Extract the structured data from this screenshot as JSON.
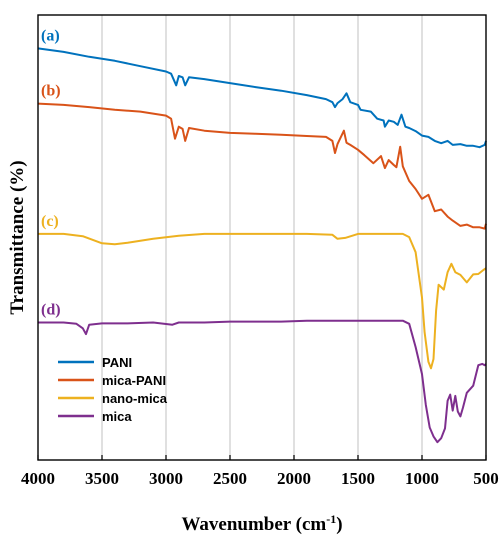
{
  "chart_data": {
    "type": "line",
    "title": "",
    "xlabel": "Wavenumber (cm",
    "xlabel_sup": "-1",
    "xlabel_end": ")",
    "ylabel": "Transmittance (%)",
    "xlim": [
      4000,
      500
    ],
    "x_reversed": true,
    "ylim": [
      0,
      100
    ],
    "y_ticks_shown": false,
    "x_ticks": [
      "4000",
      "3500",
      "3000",
      "2500",
      "2000",
      "1500",
      "1000",
      "500"
    ],
    "x_tick_values": [
      4000,
      3500,
      3000,
      2500,
      2000,
      1500,
      1000,
      500
    ],
    "grid": "vertical",
    "legend_position": "lower-left",
    "series": [
      {
        "name": "PANI",
        "label": "(a)",
        "color": "#0072BD",
        "points": [
          [
            4000,
            92.5
          ],
          [
            3800,
            91.7
          ],
          [
            3600,
            90.6
          ],
          [
            3400,
            89.7
          ],
          [
            3200,
            88.5
          ],
          [
            3000,
            87.3
          ],
          [
            2960,
            86.8
          ],
          [
            2920,
            84.2
          ],
          [
            2900,
            86.3
          ],
          [
            2870,
            86.0
          ],
          [
            2850,
            84.2
          ],
          [
            2820,
            86.0
          ],
          [
            2700,
            85.6
          ],
          [
            2500,
            84.7
          ],
          [
            2300,
            83.8
          ],
          [
            2100,
            83.0
          ],
          [
            1900,
            82.0
          ],
          [
            1750,
            81.1
          ],
          [
            1700,
            80.4
          ],
          [
            1680,
            79.3
          ],
          [
            1660,
            80.2
          ],
          [
            1620,
            81.1
          ],
          [
            1590,
            82.4
          ],
          [
            1560,
            80.4
          ],
          [
            1500,
            79.8
          ],
          [
            1480,
            78.7
          ],
          [
            1400,
            78.3
          ],
          [
            1350,
            76.7
          ],
          [
            1300,
            76.3
          ],
          [
            1290,
            74.9
          ],
          [
            1260,
            76.3
          ],
          [
            1220,
            76.0
          ],
          [
            1190,
            75.3
          ],
          [
            1160,
            77.6
          ],
          [
            1130,
            74.9
          ],
          [
            1100,
            74.6
          ],
          [
            1050,
            73.9
          ],
          [
            1000,
            72.9
          ],
          [
            950,
            72.6
          ],
          [
            900,
            71.7
          ],
          [
            850,
            71.2
          ],
          [
            800,
            71.7
          ],
          [
            760,
            70.8
          ],
          [
            700,
            71.0
          ],
          [
            650,
            70.6
          ],
          [
            600,
            70.6
          ],
          [
            550,
            70.3
          ],
          [
            510,
            70.8
          ],
          [
            500,
            71.7
          ]
        ]
      },
      {
        "name": "mica-PANI",
        "label": "(b)",
        "color": "#D95319",
        "points": [
          [
            4000,
            80.1
          ],
          [
            3800,
            79.8
          ],
          [
            3600,
            79.3
          ],
          [
            3400,
            78.7
          ],
          [
            3200,
            78.3
          ],
          [
            3000,
            77.4
          ],
          [
            2960,
            76.7
          ],
          [
            2930,
            72.2
          ],
          [
            2900,
            74.9
          ],
          [
            2870,
            74.4
          ],
          [
            2850,
            71.7
          ],
          [
            2820,
            74.6
          ],
          [
            2700,
            74.0
          ],
          [
            2500,
            73.5
          ],
          [
            2300,
            73.3
          ],
          [
            2100,
            73.1
          ],
          [
            1900,
            72.8
          ],
          [
            1750,
            72.6
          ],
          [
            1700,
            71.7
          ],
          [
            1680,
            69.0
          ],
          [
            1660,
            71.0
          ],
          [
            1610,
            74.0
          ],
          [
            1590,
            71.3
          ],
          [
            1560,
            70.8
          ],
          [
            1500,
            69.7
          ],
          [
            1450,
            68.5
          ],
          [
            1380,
            66.7
          ],
          [
            1320,
            68.3
          ],
          [
            1290,
            65.6
          ],
          [
            1260,
            67.4
          ],
          [
            1220,
            66.3
          ],
          [
            1200,
            65.8
          ],
          [
            1170,
            70.4
          ],
          [
            1150,
            66.0
          ],
          [
            1100,
            62.7
          ],
          [
            1050,
            60.9
          ],
          [
            1000,
            58.7
          ],
          [
            950,
            59.6
          ],
          [
            900,
            55.9
          ],
          [
            850,
            56.3
          ],
          [
            800,
            54.7
          ],
          [
            760,
            53.8
          ],
          [
            700,
            52.6
          ],
          [
            650,
            52.9
          ],
          [
            600,
            52.3
          ],
          [
            550,
            52.3
          ],
          [
            510,
            52.0
          ],
          [
            500,
            53.1
          ]
        ]
      },
      {
        "name": "nano-mica",
        "label": "(c)",
        "color": "#EDB120",
        "points": [
          [
            4000,
            50.8
          ],
          [
            3800,
            50.8
          ],
          [
            3650,
            50.3
          ],
          [
            3500,
            48.7
          ],
          [
            3400,
            48.5
          ],
          [
            3300,
            48.8
          ],
          [
            3100,
            49.7
          ],
          [
            2900,
            50.4
          ],
          [
            2700,
            50.8
          ],
          [
            2500,
            50.8
          ],
          [
            2300,
            50.8
          ],
          [
            2100,
            50.8
          ],
          [
            1900,
            50.8
          ],
          [
            1700,
            50.6
          ],
          [
            1660,
            49.7
          ],
          [
            1600,
            49.9
          ],
          [
            1500,
            50.8
          ],
          [
            1300,
            50.8
          ],
          [
            1150,
            50.8
          ],
          [
            1100,
            50.1
          ],
          [
            1050,
            46.7
          ],
          [
            1000,
            36.5
          ],
          [
            980,
            28.7
          ],
          [
            950,
            22.1
          ],
          [
            930,
            20.6
          ],
          [
            910,
            22.7
          ],
          [
            890,
            33.6
          ],
          [
            870,
            39.4
          ],
          [
            830,
            38.3
          ],
          [
            800,
            42.2
          ],
          [
            770,
            44.1
          ],
          [
            740,
            42.2
          ],
          [
            700,
            41.6
          ],
          [
            650,
            39.9
          ],
          [
            600,
            41.7
          ],
          [
            560,
            41.8
          ],
          [
            520,
            42.7
          ],
          [
            500,
            43.1
          ]
        ]
      },
      {
        "name": "mica",
        "label": "(d)",
        "color": "#7E2F8E",
        "points": [
          [
            4000,
            30.9
          ],
          [
            3800,
            30.9
          ],
          [
            3700,
            30.6
          ],
          [
            3650,
            29.6
          ],
          [
            3625,
            28.3
          ],
          [
            3600,
            30.4
          ],
          [
            3500,
            30.7
          ],
          [
            3300,
            30.7
          ],
          [
            3100,
            30.9
          ],
          [
            2950,
            30.4
          ],
          [
            2900,
            30.9
          ],
          [
            2700,
            30.9
          ],
          [
            2500,
            31.1
          ],
          [
            2300,
            31.1
          ],
          [
            2100,
            31.1
          ],
          [
            1900,
            31.3
          ],
          [
            1700,
            31.3
          ],
          [
            1500,
            31.3
          ],
          [
            1300,
            31.3
          ],
          [
            1150,
            31.3
          ],
          [
            1100,
            30.6
          ],
          [
            1050,
            25.4
          ],
          [
            1000,
            19.3
          ],
          [
            970,
            12.4
          ],
          [
            940,
            7.3
          ],
          [
            910,
            5.3
          ],
          [
            880,
            4.0
          ],
          [
            850,
            4.9
          ],
          [
            820,
            7.1
          ],
          [
            800,
            13.3
          ],
          [
            780,
            14.7
          ],
          [
            760,
            11.1
          ],
          [
            740,
            14.4
          ],
          [
            720,
            10.9
          ],
          [
            700,
            9.8
          ],
          [
            680,
            11.8
          ],
          [
            650,
            15.1
          ],
          [
            600,
            16.7
          ],
          [
            560,
            21.3
          ],
          [
            530,
            21.6
          ],
          [
            510,
            21.3
          ],
          [
            500,
            21.6
          ]
        ]
      }
    ],
    "legend": [
      "PANI",
      "mica-PANI",
      "nano-mica",
      "mica"
    ],
    "annotations": [
      "(a)",
      "(b)",
      "(c)",
      "(d)"
    ]
  }
}
